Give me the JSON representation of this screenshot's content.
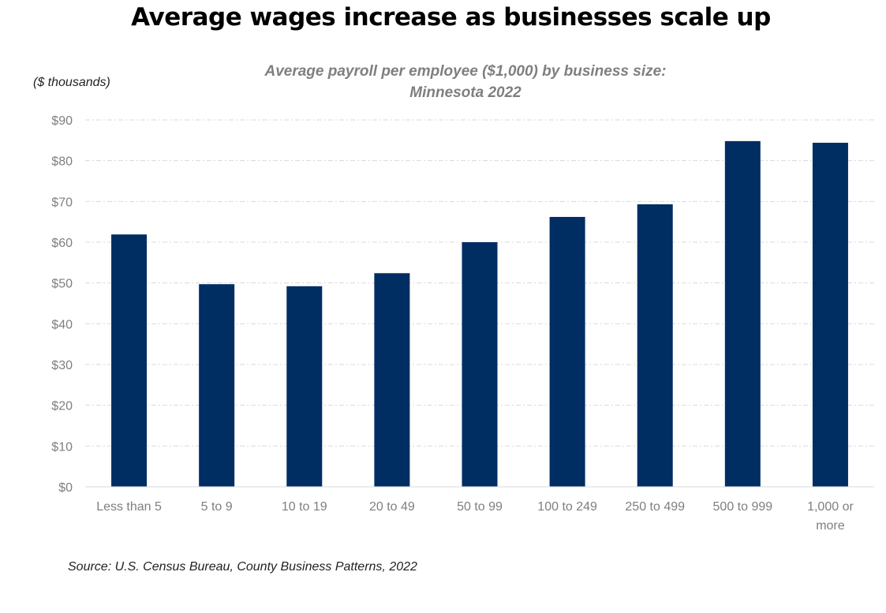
{
  "chart_data": {
    "type": "bar",
    "title": "Average wages increase as businesses scale up",
    "subtitle_lines": [
      "Average payroll per employee ($1,000) by business size:",
      "Minnesota 2022"
    ],
    "ylabel": "($ thousands)",
    "xlabel": "",
    "categories": [
      "Less than 5",
      "5 to 9",
      "10 to 19",
      "20 to 49",
      "50 to 99",
      "100 to 249",
      "250 to 499",
      "500 to 999",
      "1,000  or more"
    ],
    "category_lines": [
      [
        "Less than 5"
      ],
      [
        "5 to 9"
      ],
      [
        "10 to 19"
      ],
      [
        "20 to 49"
      ],
      [
        "50 to 99"
      ],
      [
        "100 to 249"
      ],
      [
        "250 to 499"
      ],
      [
        "500 to 999"
      ],
      [
        "1,000  or",
        "more"
      ]
    ],
    "values": [
      61.9,
      49.7,
      49.2,
      52.4,
      60.0,
      66.2,
      69.3,
      84.8,
      84.4
    ],
    "ylim": [
      0,
      90
    ],
    "yticks": [
      0,
      10,
      20,
      30,
      40,
      50,
      60,
      70,
      80,
      90
    ],
    "ytick_labels": [
      "$0",
      "$10",
      "$20",
      "$30",
      "$40",
      "$50",
      "$60",
      "$70",
      "$80",
      "$90"
    ],
    "grid": true,
    "legend": "none",
    "bar_color": "#002d62",
    "grid_color": "#d9d9d9",
    "source": "Source: U.S. Census Bureau, County Business Patterns, 2022"
  }
}
